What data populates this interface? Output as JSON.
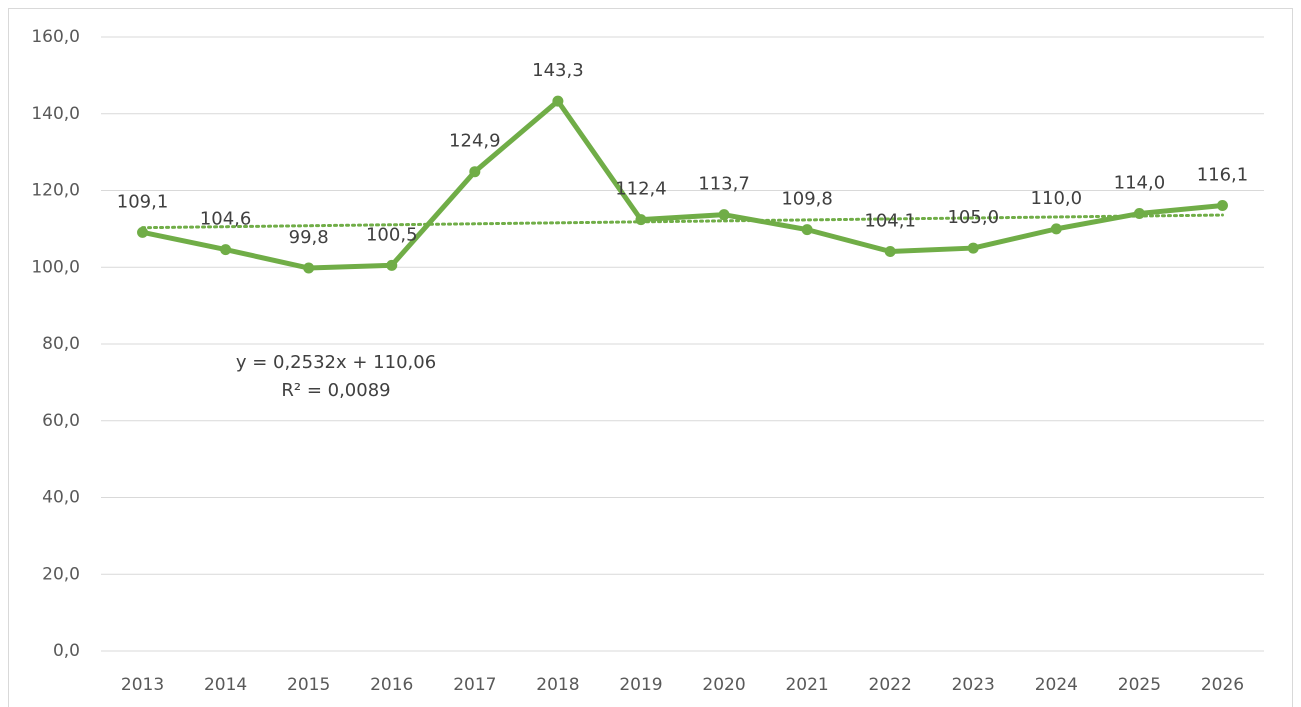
{
  "chart_data": {
    "type": "line",
    "categories": [
      "2013",
      "2014",
      "2015",
      "2016",
      "2017",
      "2018",
      "2019",
      "2020",
      "2021",
      "2022",
      "2023",
      "2024",
      "2025",
      "2026"
    ],
    "series": [
      {
        "color": "#70ad47",
        "values": [
          109.1,
          104.6,
          99.8,
          100.5,
          124.9,
          143.3,
          112.4,
          113.7,
          109.8,
          104.1,
          105.0,
          110.0,
          114.0,
          116.1
        ],
        "value_labels": [
          "109,1",
          "104,6",
          "99,8",
          "100,5",
          "124,9",
          "143,3",
          "112,4",
          "113,7",
          "109,8",
          "104,1",
          "105,0",
          "110,0",
          "114,0",
          "116,1"
        ]
      }
    ],
    "trendline": {
      "slope": 0.2532,
      "intercept": 110.06,
      "equation": "y = 0,2532x + 110,06",
      "r_squared": "R² = 0,0089"
    },
    "ylim": [
      0,
      160
    ],
    "yticks": [
      {
        "value": 0,
        "label": "0,0"
      },
      {
        "value": 20,
        "label": "20,0"
      },
      {
        "value": 40,
        "label": "40,0"
      },
      {
        "value": 60,
        "label": "60,0"
      },
      {
        "value": 80,
        "label": "80,0"
      },
      {
        "value": 100,
        "label": "100,0"
      },
      {
        "value": 120,
        "label": "120,0"
      },
      {
        "value": 140,
        "label": "140,0"
      },
      {
        "value": 160,
        "label": "160,0"
      }
    ],
    "grid": true
  }
}
